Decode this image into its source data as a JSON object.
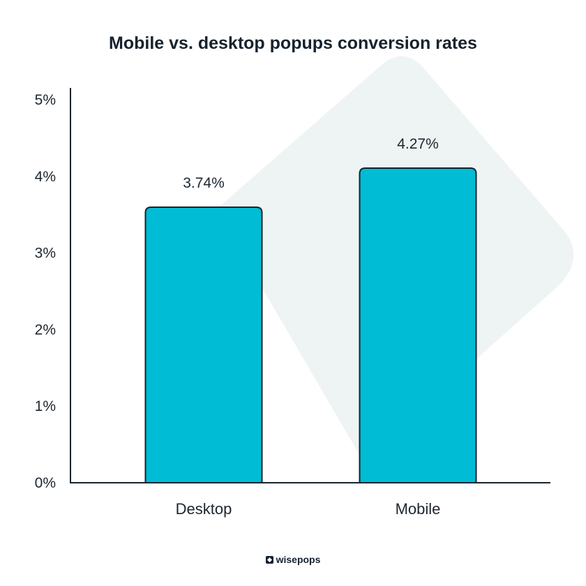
{
  "chart_data": {
    "type": "bar",
    "title": "Mobile vs. desktop popups conversion rates",
    "categories": [
      "Desktop",
      "Mobile"
    ],
    "values": [
      3.74,
      4.27
    ],
    "value_labels": [
      "3.74%",
      "4.27%"
    ],
    "ylim": [
      0,
      5
    ],
    "y_ticks": [
      "0%",
      "1%",
      "2%",
      "3%",
      "4%",
      "5%"
    ],
    "xlabel": "",
    "ylabel": "",
    "grid": false,
    "colors": {
      "bar": "#00bcd4",
      "bar_outline": "#16222e",
      "axis": "#16222e",
      "background_shape": "#eef4f3"
    }
  },
  "brand": {
    "name": "wisepops"
  }
}
